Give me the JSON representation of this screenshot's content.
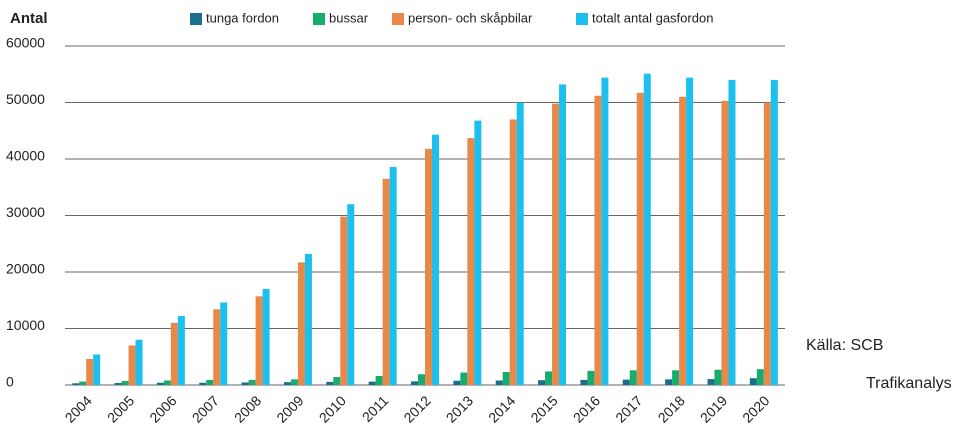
{
  "chart_data": {
    "type": "bar",
    "ylabel": "Antal",
    "annotations": [
      "Källa: SCB",
      "Trafikanalys"
    ],
    "categories": [
      "2004",
      "2005",
      "2006",
      "2007",
      "2008",
      "2009",
      "2010",
      "2011",
      "2012",
      "2013",
      "2014",
      "2015",
      "2016",
      "2017",
      "2018",
      "2019",
      "2020"
    ],
    "series": [
      {
        "name": "tunga fordon",
        "color": "#1a6e8e",
        "values": [
          300,
          350,
          400,
          400,
          450,
          500,
          550,
          600,
          650,
          750,
          800,
          850,
          900,
          950,
          1000,
          1050,
          1200
        ]
      },
      {
        "name": "bussar",
        "color": "#16ad6c",
        "values": [
          600,
          700,
          800,
          900,
          900,
          1000,
          1400,
          1600,
          1900,
          2200,
          2300,
          2400,
          2500,
          2600,
          2600,
          2700,
          2800
        ]
      },
      {
        "name": "person- och skåpbilar",
        "color": "#e8894a",
        "values": [
          4600,
          7000,
          11000,
          13400,
          15700,
          21700,
          29800,
          36500,
          41800,
          43700,
          47000,
          49800,
          51200,
          51700,
          51000,
          50300,
          50000
        ]
      },
      {
        "name": "totalt antal gasfordon",
        "color": "#1cc0ef",
        "values": [
          5400,
          8000,
          12200,
          14600,
          17000,
          23200,
          32000,
          38600,
          44300,
          46800,
          50000,
          53200,
          54400,
          55100,
          54400,
          54000,
          54000
        ]
      }
    ],
    "ylim": [
      0,
      60000
    ],
    "yticks": [
      0,
      10000,
      20000,
      30000,
      40000,
      50000,
      60000
    ],
    "grid": true
  }
}
